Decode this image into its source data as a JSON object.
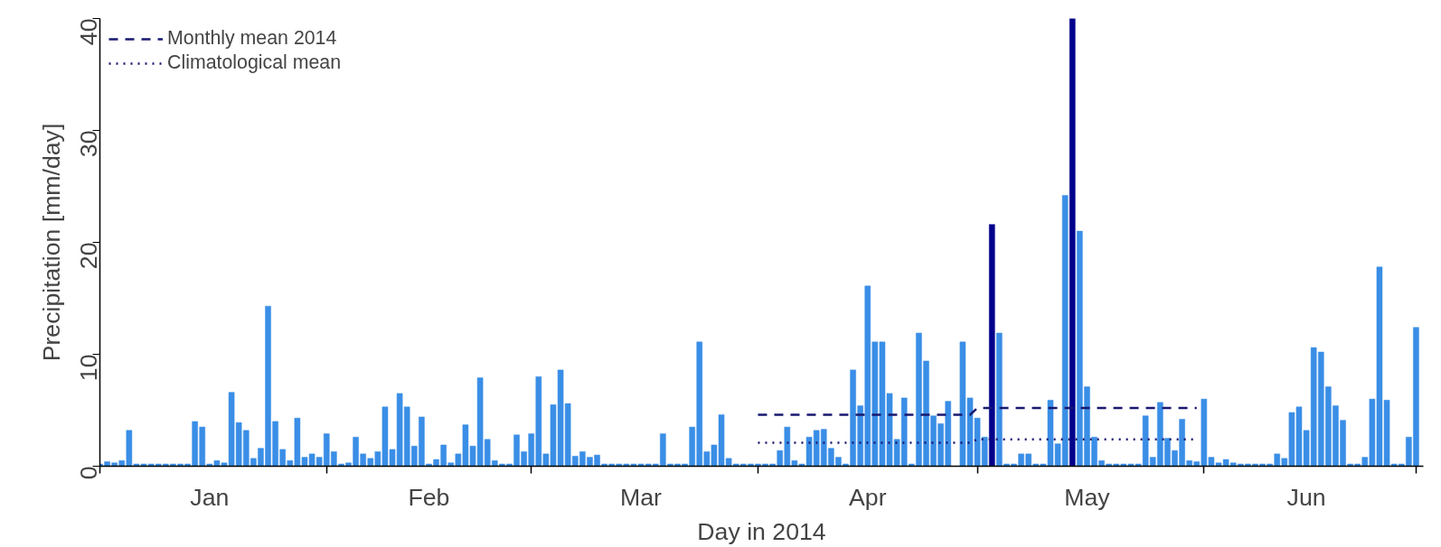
{
  "chart_data": {
    "type": "bar",
    "xlabel": "Day in 2014",
    "ylabel": "Precipitation [mm/day]",
    "x": [
      "2014-01-01",
      "2014-01-02",
      "2014-01-03",
      "2014-01-04",
      "2014-01-05",
      "2014-01-06",
      "2014-01-07",
      "2014-01-08",
      "2014-01-09",
      "2014-01-10",
      "2014-01-11",
      "2014-01-12",
      "2014-01-13",
      "2014-01-14",
      "2014-01-15",
      "2014-01-16",
      "2014-01-17",
      "2014-01-18",
      "2014-01-19",
      "2014-01-20",
      "2014-01-21",
      "2014-01-22",
      "2014-01-23",
      "2014-01-24",
      "2014-01-25",
      "2014-01-26",
      "2014-01-27",
      "2014-01-28",
      "2014-01-29",
      "2014-01-30",
      "2014-01-31",
      "2014-02-01",
      "2014-02-02",
      "2014-02-03",
      "2014-02-04",
      "2014-02-05",
      "2014-02-06",
      "2014-02-07",
      "2014-02-08",
      "2014-02-09",
      "2014-02-10",
      "2014-02-11",
      "2014-02-12",
      "2014-02-13",
      "2014-02-14",
      "2014-02-15",
      "2014-02-16",
      "2014-02-17",
      "2014-02-18",
      "2014-02-19",
      "2014-02-20",
      "2014-02-21",
      "2014-02-22",
      "2014-02-23",
      "2014-02-24",
      "2014-02-25",
      "2014-02-26",
      "2014-02-27",
      "2014-02-28",
      "2014-03-01",
      "2014-03-02",
      "2014-03-03",
      "2014-03-04",
      "2014-03-05",
      "2014-03-06",
      "2014-03-07",
      "2014-03-08",
      "2014-03-09",
      "2014-03-10",
      "2014-03-11",
      "2014-03-12",
      "2014-03-13",
      "2014-03-14",
      "2014-03-15",
      "2014-03-16",
      "2014-03-17",
      "2014-03-18",
      "2014-03-19",
      "2014-03-20",
      "2014-03-21",
      "2014-03-22",
      "2014-03-23",
      "2014-03-24",
      "2014-03-25",
      "2014-03-26",
      "2014-03-27",
      "2014-03-28",
      "2014-03-29",
      "2014-03-30",
      "2014-03-31",
      "2014-04-01",
      "2014-04-02",
      "2014-04-03",
      "2014-04-04",
      "2014-04-05",
      "2014-04-06",
      "2014-04-07",
      "2014-04-08",
      "2014-04-09",
      "2014-04-10",
      "2014-04-11",
      "2014-04-12",
      "2014-04-13",
      "2014-04-14",
      "2014-04-15",
      "2014-04-16",
      "2014-04-17",
      "2014-04-18",
      "2014-04-19",
      "2014-04-20",
      "2014-04-21",
      "2014-04-22",
      "2014-04-23",
      "2014-04-24",
      "2014-04-25",
      "2014-04-26",
      "2014-04-27",
      "2014-04-28",
      "2014-04-29",
      "2014-04-30",
      "2014-05-01",
      "2014-05-02",
      "2014-05-03",
      "2014-05-04",
      "2014-05-05",
      "2014-05-06",
      "2014-05-07",
      "2014-05-08",
      "2014-05-09",
      "2014-05-10",
      "2014-05-11",
      "2014-05-12",
      "2014-05-13",
      "2014-05-14",
      "2014-05-15",
      "2014-05-16",
      "2014-05-17",
      "2014-05-18",
      "2014-05-19",
      "2014-05-20",
      "2014-05-21",
      "2014-05-22",
      "2014-05-23",
      "2014-05-24",
      "2014-05-25",
      "2014-05-26",
      "2014-05-27",
      "2014-05-28",
      "2014-05-29",
      "2014-05-30",
      "2014-05-31",
      "2014-06-01",
      "2014-06-02",
      "2014-06-03",
      "2014-06-04",
      "2014-06-05",
      "2014-06-06",
      "2014-06-07",
      "2014-06-08",
      "2014-06-09",
      "2014-06-10",
      "2014-06-11",
      "2014-06-12",
      "2014-06-13",
      "2014-06-14",
      "2014-06-15",
      "2014-06-16",
      "2014-06-17",
      "2014-06-18",
      "2014-06-19",
      "2014-06-20",
      "2014-06-21",
      "2014-06-22",
      "2014-06-23",
      "2014-06-24",
      "2014-06-25",
      "2014-06-26",
      "2014-06-27",
      "2014-06-28",
      "2014-06-29",
      "2014-06-30"
    ],
    "series": [
      {
        "color": "#3a8ee6",
        "values": [
          0.2,
          0.4,
          0.3,
          0.5,
          3.2,
          0.2,
          0.2,
          0.2,
          0.2,
          0.2,
          0.2,
          0.2,
          0.2,
          4.0,
          3.5,
          0.2,
          0.5,
          0.3,
          6.6,
          3.9,
          3.2,
          0.7,
          1.6,
          14.3,
          4.0,
          1.5,
          0.5,
          4.3,
          0.8,
          1.1,
          0.8,
          2.9,
          1.3,
          0.2,
          0.3,
          2.6,
          1.1,
          0.7,
          1.3,
          5.3,
          1.5,
          6.5,
          5.3,
          1.8,
          4.4,
          0.2,
          0.6,
          1.9,
          0.3,
          1.1,
          3.7,
          1.8,
          7.9,
          2.4,
          0.5,
          0.2,
          0.2,
          2.8,
          1.3,
          2.9,
          8.0,
          1.1,
          5.5,
          8.6,
          5.6,
          0.9,
          1.3,
          0.8,
          1.0,
          0.2,
          0.2,
          0.2,
          0.2,
          0.2,
          0.2,
          0.2,
          0.2,
          2.9,
          0.2,
          0.2,
          0.2,
          3.5,
          11.1,
          1.3,
          1.9,
          4.6,
          0.7,
          0.2,
          0.2,
          0.2,
          0.2,
          0.2,
          0.2,
          1.4,
          3.5,
          0.5,
          0.2,
          2.6,
          3.2,
          3.3,
          1.6,
          0.8,
          0.2,
          8.6,
          5.4,
          16.1,
          11.1,
          11.1,
          6.5,
          2.4,
          6.1,
          0.2,
          11.9,
          9.4,
          4.5,
          3.8,
          5.8,
          null,
          11.1,
          6.1,
          4.3,
          2.6,
          null,
          11.9,
          0.2,
          0.2,
          1.1,
          1.1,
          0.2,
          0.2,
          5.9,
          2.0,
          24.2,
          null,
          21.0,
          7.1,
          2.6,
          0.5,
          0.2,
          0.2,
          0.2,
          0.2,
          0.2,
          4.5,
          0.8,
          5.7,
          2.5,
          1.4,
          4.2,
          0.5,
          0.4,
          6.0,
          0.8,
          0.3,
          0.6,
          0.3,
          0.2,
          0.2,
          0.2,
          0.2,
          0.2,
          1.1,
          0.7,
          4.8,
          5.3,
          3.2,
          10.6,
          10.2,
          7.1,
          5.4,
          4.1,
          0.2,
          0.2,
          0.8,
          6.0,
          17.8,
          5.9,
          0.2,
          0.2,
          2.6,
          12.4
        ]
      },
      {
        "color": "#00008b",
        "x": [
          "2014-05-03",
          "2014-05-14"
        ],
        "values": [
          21.6,
          40
        ]
      },
      {
        "type": "line",
        "name": "Monthly mean 2014",
        "color": "#191970",
        "line_style": "dashed",
        "x": [
          "2014-04-01",
          "2014-04-30",
          "2014-05-01",
          "2014-05-31"
        ],
        "values": [
          4.6,
          4.6,
          5.2,
          5.2
        ]
      },
      {
        "type": "line",
        "name": "Climatological mean",
        "color": "#191970",
        "line_style": "dotted",
        "x": [
          "2014-04-01",
          "2014-04-30",
          "2014-05-01",
          "2014-05-31"
        ],
        "values": [
          2.1,
          2.1,
          2.4,
          2.4
        ]
      }
    ],
    "xlim": [
      "2014-01-01",
      "2014-07-01"
    ],
    "xticks": [
      {
        "value": "2014-01-01",
        "label": null
      },
      {
        "value": "2014-02-01",
        "label": null
      },
      {
        "value": "2014-03-01",
        "label": null
      },
      {
        "value": "2014-04-01",
        "label": null
      },
      {
        "value": "2014-05-01",
        "label": null
      },
      {
        "value": "2014-06-01",
        "label": null
      },
      {
        "value": "2014-06-30",
        "label": null
      },
      {
        "value": "2014-01-16",
        "label": "Jan"
      },
      {
        "value": "2014-02-15",
        "label": "Feb"
      },
      {
        "value": "2014-03-16",
        "label": "Mar"
      },
      {
        "value": "2014-04-16",
        "label": "Apr"
      },
      {
        "value": "2014-05-16",
        "label": "May"
      },
      {
        "value": "2014-06-15",
        "label": "Jun"
      }
    ],
    "ylim": [
      0,
      40
    ],
    "yticks": [
      0,
      10,
      20,
      30,
      40
    ],
    "grid": false,
    "legend": "top left"
  }
}
